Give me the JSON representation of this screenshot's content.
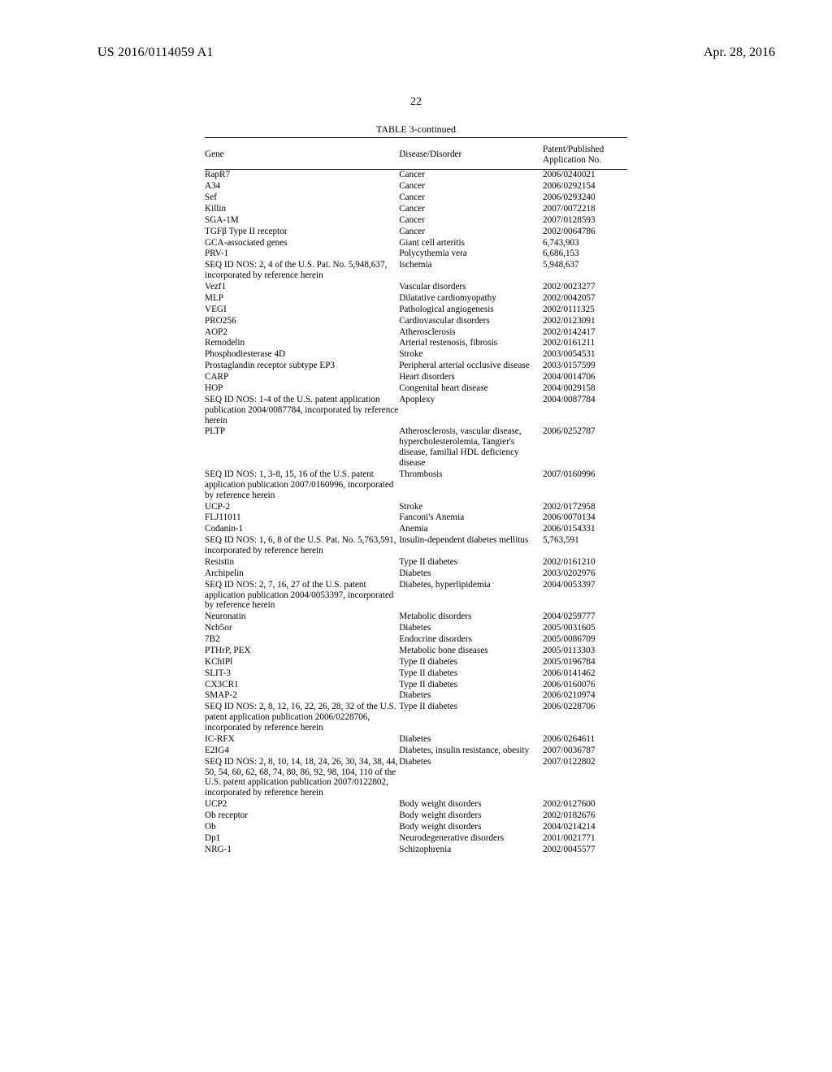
{
  "header": {
    "publication_number": "US 2016/0114059 A1",
    "publication_date": "Apr. 28, 2016"
  },
  "page_number": "22",
  "table": {
    "caption": "TABLE 3-continued",
    "columns": {
      "gene": "Gene",
      "disease": "Disease/Disorder",
      "patent_line1": "Patent/Published",
      "patent_line2": "Application No."
    },
    "rows": [
      {
        "gene": "RapR7",
        "disease": "Cancer",
        "patent": "2006/0240021"
      },
      {
        "gene": "A34",
        "disease": "Cancer",
        "patent": "2006/0292154"
      },
      {
        "gene": "Sef",
        "disease": "Cancer",
        "patent": "2006/0293240"
      },
      {
        "gene": "Killin",
        "disease": "Cancer",
        "patent": "2007/0072218"
      },
      {
        "gene": "SGA-1M",
        "disease": "Cancer",
        "patent": "2007/0128593"
      },
      {
        "gene": "TGFβ Type II receptor",
        "disease": "Cancer",
        "patent": "2002/0064786"
      },
      {
        "gene": "GCA-associated genes",
        "disease": "Giant cell arteritis",
        "patent": "6,743,903"
      },
      {
        "gene": "PRV-1",
        "disease": "Polycythemia vera",
        "patent": "6,686,153"
      },
      {
        "gene": "SEQ ID NOS: 2, 4 of the U.S. Pat. No. 5,948,637, incorporated by reference herein",
        "disease": "Ischemia",
        "patent": "5,948,637"
      },
      {
        "gene": "Vezf1",
        "disease": "Vascular disorders",
        "patent": "2002/0023277"
      },
      {
        "gene": "MLP",
        "disease": "Dilatative cardiomyopathy",
        "patent": "2002/0042057"
      },
      {
        "gene": "VEGI",
        "disease": "Pathological angiogenesis",
        "patent": "2002/0111325"
      },
      {
        "gene": "PRO256",
        "disease": "Cardiovascular disorders",
        "patent": "2002/0123091"
      },
      {
        "gene": "AOP2",
        "disease": "Atherosclerosis",
        "patent": "2002/0142417"
      },
      {
        "gene": "Remodelin",
        "disease": "Arterial restenosis, fibrosis",
        "patent": "2002/0161211"
      },
      {
        "gene": "Phosphodiesterase 4D",
        "disease": "Stroke",
        "patent": "2003/0054531"
      },
      {
        "gene": "Prostaglandin receptor subtype EP3",
        "disease": "Peripheral arterial occlusive disease",
        "patent": "2003/0157599"
      },
      {
        "gene": "CARP",
        "disease": "Heart disorders",
        "patent": "2004/0014706"
      },
      {
        "gene": "HOP",
        "disease": "Congenital heart disease",
        "patent": "2004/0029158"
      },
      {
        "gene": "SEQ ID NOS: 1-4 of the U.S. patent application publication 2004/0087784, incorporated by reference herein",
        "disease": "Apoplexy",
        "patent": "2004/0087784"
      },
      {
        "gene": "PLTP",
        "disease": "Atherosclerosis, vascular disease, hypercholesterolemia, Tangier's disease, familial HDL deficiency disease",
        "patent": "2006/0252787"
      },
      {
        "gene": "SEQ ID NOS: 1, 3-8, 15, 16 of the U.S. patent application publication 2007/0160996, incorporated by reference herein",
        "disease": "Thrombosis",
        "patent": "2007/0160996"
      },
      {
        "gene": "UCP-2",
        "disease": "Stroke",
        "patent": "2002/0172958"
      },
      {
        "gene": "FLJ11011",
        "disease": "Fanconi's Anemia",
        "patent": "2006/0070134"
      },
      {
        "gene": "Codanin-1",
        "disease": "Anemia",
        "patent": "2006/0154331"
      },
      {
        "gene": "SEQ ID NOS: 1, 6, 8 of the U.S. Pat. No. 5,763,591, incorporated by reference herein",
        "disease": "Insulin-dependent diabetes mellitus",
        "patent": "5,763,591"
      },
      {
        "gene": "Resistin",
        "disease": "Type II diabetes",
        "patent": "2002/0161210"
      },
      {
        "gene": "Archipelin",
        "disease": "Diabetes",
        "patent": "2003/0202976"
      },
      {
        "gene": "SEQ ID NOS: 2, 7, 16, 27 of the U.S. patent application publication 2004/0053397, incorporated by reference herein",
        "disease": "Diabetes, hyperlipidemia",
        "patent": "2004/0053397"
      },
      {
        "gene": "Neuronatin",
        "disease": "Metabolic disorders",
        "patent": "2004/0259777"
      },
      {
        "gene": "Ncb5or",
        "disease": "Diabetes",
        "patent": "2005/0031605"
      },
      {
        "gene": "7B2",
        "disease": "Endocrine disorders",
        "patent": "2005/0086709"
      },
      {
        "gene": "PTHrP, PEX",
        "disease": "Metabolic bone diseases",
        "patent": "2005/0113303"
      },
      {
        "gene": "KChIPl",
        "disease": "Type II diabetes",
        "patent": "2005/0196784"
      },
      {
        "gene": "SLIT-3",
        "disease": "Type II diabetes",
        "patent": "2006/0141462"
      },
      {
        "gene": "CX3CR1",
        "disease": "Type II diabetes",
        "patent": "2006/0160076"
      },
      {
        "gene": "SMAP-2",
        "disease": "Diabetes",
        "patent": "2006/0210974"
      },
      {
        "gene": "SEQ ID NOS: 2, 8, 12, 16, 22, 26, 28, 32 of the U.S. patent application publication 2006/0228706, incorporated by reference herein",
        "disease": "Type II diabetes",
        "patent": "2006/0228706"
      },
      {
        "gene": "IC-RFX",
        "disease": "Diabetes",
        "patent": "2006/0264611"
      },
      {
        "gene": "E2IG4",
        "disease": "Diabetes, insulin resistance, obesity",
        "patent": "2007/0036787"
      },
      {
        "gene": "SEQ ID NOS: 2, 8, 10, 14, 18, 24, 26, 30, 34, 38, 44, 50, 54, 60, 62, 68, 74, 80, 86, 92, 98, 104, 110 of the U.S. patent application publication 2007/0122802, incorporated by reference herein",
        "disease": "Diabetes",
        "patent": "2007/0122802"
      },
      {
        "gene": "UCP2",
        "disease": "Body weight disorders",
        "patent": "2002/0127600"
      },
      {
        "gene": "Ob receptor",
        "disease": "Body weight disorders",
        "patent": "2002/0182676"
      },
      {
        "gene": "Ob",
        "disease": "Body weight disorders",
        "patent": "2004/0214214"
      },
      {
        "gene": "Dp1",
        "disease": "Neurodegenerative disorders",
        "patent": "2001/0021771"
      },
      {
        "gene": "NRG-1",
        "disease": "Schizophrenia",
        "patent": "2002/0045577"
      }
    ]
  }
}
